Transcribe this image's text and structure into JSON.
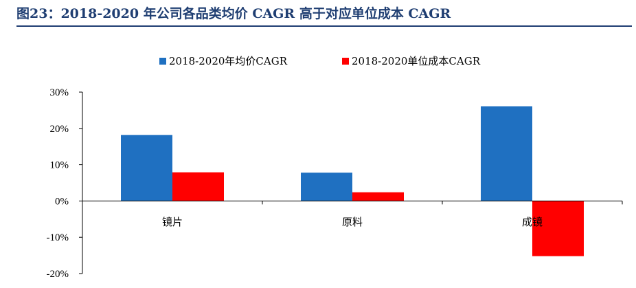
{
  "title": "图23：2018-2020 年公司各品类均价 CAGR 高于对应单位成本 CAGR",
  "chart_data": {
    "type": "bar",
    "title": "",
    "xlabel": "",
    "ylabel": "",
    "categories": [
      "镜片",
      "原料",
      "成镜"
    ],
    "series": [
      {
        "name": "2018-2020年均价CAGR",
        "color": "#1F70C1",
        "values": [
          18.2,
          7.8,
          26.1
        ]
      },
      {
        "name": "2018-2020单位成本CAGR",
        "color": "#FF0000",
        "values": [
          7.9,
          2.4,
          -15.2
        ]
      }
    ],
    "ylim": [
      -20,
      30
    ],
    "yticks": [
      30,
      20,
      10,
      0,
      -10,
      -20
    ],
    "ytick_labels": [
      "30%",
      "20%",
      "10%",
      "0%",
      "-10%",
      "-20%"
    ],
    "grid": false,
    "legend_position": "top-center"
  }
}
